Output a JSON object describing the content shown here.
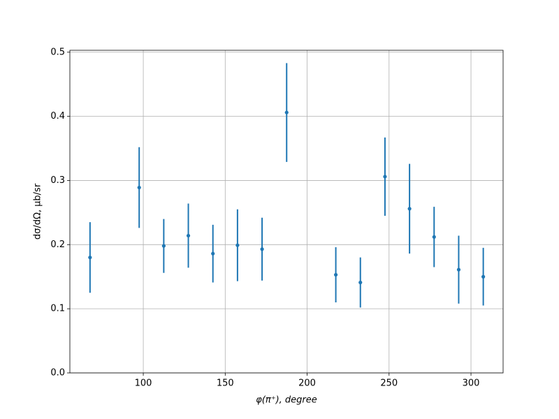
{
  "chart_data": {
    "type": "scatter",
    "x_label": "φ(π⁺), degree",
    "y_label": "dσ/dΩ, μb/sr",
    "x": [
      67.5,
      97.5,
      112.5,
      127.5,
      142.5,
      157.5,
      172.5,
      187.5,
      217.5,
      232.5,
      247.5,
      262.5,
      277.5,
      292.5,
      307.5
    ],
    "series": [
      {
        "color": "#1f77b4",
        "values": [
          0.18,
          0.289,
          0.198,
          0.214,
          0.186,
          0.199,
          0.193,
          0.406,
          0.153,
          0.141,
          0.306,
          0.256,
          0.212,
          0.161,
          0.15
        ],
        "errors": [
          0.055,
          0.063,
          0.042,
          0.05,
          0.045,
          0.056,
          0.049,
          0.077,
          0.043,
          0.039,
          0.061,
          0.07,
          0.047,
          0.053,
          0.045
        ]
      }
    ],
    "xlim": [
      55.2,
      319.6
    ],
    "xticks": [
      100,
      150,
      200,
      250,
      300
    ],
    "ylim": [
      0,
      0.503
    ],
    "yticks": [
      {
        "value": 0,
        "label": "0.0"
      },
      0.1,
      0.2,
      0.3,
      0.4,
      0.5
    ],
    "grid": true
  }
}
